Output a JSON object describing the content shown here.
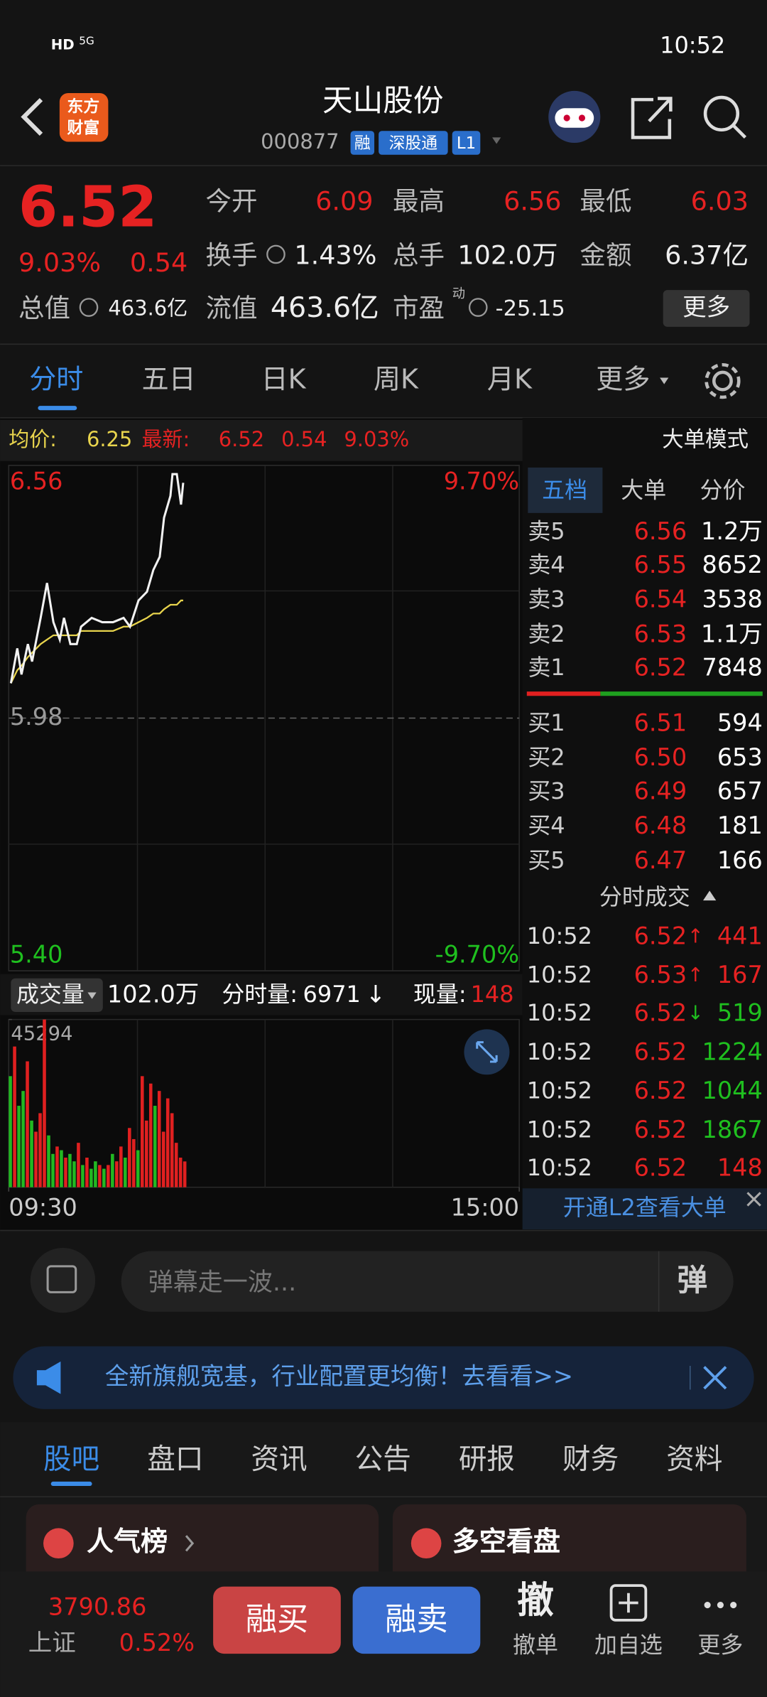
{
  "status": {
    "hd": "HD",
    "network": "5G",
    "time": "10:52"
  },
  "header": {
    "logo": [
      "东方",
      "财富"
    ],
    "name": "天山股份",
    "code": "000877",
    "badges": [
      "融",
      "深股通",
      "L1"
    ]
  },
  "quote": {
    "price": "6.52",
    "change_pct": "9.03%",
    "change": "0.54",
    "fields": [
      {
        "label": "今开",
        "value": "6.09"
      },
      {
        "label": "最高",
        "value": "6.56"
      },
      {
        "label": "最低",
        "value": "6.03"
      },
      {
        "label": "换手",
        "value": "1.43%"
      },
      {
        "label": "总手",
        "value": "102.0万"
      },
      {
        "label": "金额",
        "value": "6.37亿"
      },
      {
        "label": "总值",
        "value": "463.6亿"
      },
      {
        "label": "流值",
        "value": "463.6亿"
      },
      {
        "label": "市盈",
        "sup": "动",
        "value": "-25.15"
      }
    ],
    "more": "更多"
  },
  "tabs": [
    "分时",
    "五日",
    "日K",
    "周K",
    "月K",
    "更多"
  ],
  "info_bar": {
    "avg": "6.25",
    "latest": "6.52",
    "change": "0.54",
    "pct": "9.03%",
    "mode": "大单模式"
  },
  "chart_data": [
    {
      "type": "line",
      "x": [
        1,
        4,
        6,
        9,
        11,
        15,
        18,
        21,
        24,
        26,
        29,
        32,
        34,
        39,
        44,
        49,
        54,
        57,
        61,
        65,
        68,
        71,
        73,
        76,
        77,
        79,
        81,
        82
      ],
      "series": [
        {
          "name": "均价:",
          "color": "#e8d44d",
          "values": [
            6.06,
            6.09,
            6.1,
            6.12,
            6.13,
            6.15,
            6.16,
            6.17,
            6.17,
            6.17,
            6.17,
            6.17,
            6.18,
            6.18,
            6.18,
            6.18,
            6.19,
            6.19,
            6.2,
            6.21,
            6.22,
            6.22,
            6.23,
            6.24,
            6.24,
            6.24,
            6.25,
            6.25
          ]
        },
        {
          "name": "最新:",
          "color": "#f2f2f2",
          "values": [
            6.06,
            6.14,
            6.08,
            6.15,
            6.11,
            6.21,
            6.29,
            6.2,
            6.16,
            6.21,
            6.15,
            6.15,
            6.19,
            6.21,
            6.2,
            6.2,
            6.21,
            6.19,
            6.25,
            6.27,
            6.32,
            6.35,
            6.44,
            6.49,
            6.54,
            6.54,
            6.47,
            6.52
          ]
        }
      ],
      "xlim": [
        0,
        240
      ],
      "xticks": [
        {
          "value": 0,
          "label": "09:30"
        },
        {
          "value": 240,
          "label": "15:00"
        }
      ],
      "ylim": [
        5.4,
        6.56
      ],
      "yticks": [
        {
          "value": 5.4,
          "label": "5.40"
        },
        {
          "value": 5.98,
          "label": "5.98"
        },
        {
          "value": 6.56,
          "label": "6.56"
        }
      ],
      "ytick_colors": [
        "#1fc01f",
        "#9a9a9a",
        "#e62222"
      ],
      "y2lim": [
        -9.7,
        9.7
      ],
      "y2ticks": [
        {
          "value": -9.7,
          "label": "-9.70%"
        },
        {
          "value": 9.7,
          "label": "9.70%"
        }
      ],
      "y2tick_colors": [
        "#1fc01f",
        "#e62222"
      ],
      "grid": true
    },
    {
      "type": "bar",
      "x": [
        0,
        2,
        4,
        6,
        8,
        10,
        12,
        14,
        16,
        18,
        20,
        22,
        24,
        26,
        28,
        30,
        32,
        34,
        36,
        38,
        40,
        42,
        44,
        46,
        48,
        50,
        52,
        54,
        56,
        58,
        60,
        62,
        64,
        66,
        68,
        70,
        72,
        74,
        76,
        78,
        80,
        82
      ],
      "values": [
        30000,
        38000,
        22000,
        26000,
        34000,
        18000,
        15000,
        20000,
        45294,
        14000,
        9000,
        11000,
        10000,
        8000,
        9000,
        7000,
        12000,
        6000,
        8000,
        5000,
        7000,
        6000,
        5000,
        6000,
        9000,
        7000,
        11000,
        8000,
        16000,
        13000,
        10000,
        30000,
        18000,
        28000,
        22000,
        26000,
        15000,
        24000,
        20000,
        12000,
        8000,
        6971
      ],
      "colors": [
        "#22b822",
        "#e02020",
        "#22b822",
        "#22b822",
        "#e02020",
        "#22b822",
        "#e02020",
        "#e02020",
        "#e02020",
        "#22b822",
        "#22b822",
        "#e02020",
        "#22b822",
        "#e02020",
        "#22b822",
        "#22b822",
        "#e02020",
        "#22b822",
        "#e02020",
        "#22b822",
        "#22b822",
        "#e02020",
        "#22b822",
        "#e02020",
        "#22b822",
        "#e02020",
        "#e02020",
        "#22b822",
        "#e02020",
        "#e02020",
        "#22b822",
        "#e02020",
        "#e02020",
        "#e02020",
        "#22b822",
        "#e02020",
        "#e02020",
        "#e02020",
        "#e02020",
        "#e02020",
        "#e02020",
        "#e02020"
      ],
      "xlim": [
        0,
        240
      ],
      "ylim": [
        0,
        45294
      ],
      "yticks": [
        45294
      ]
    }
  ],
  "volume_header": {
    "select": "成交量",
    "total": "102.0万",
    "minute_label": "分时量:",
    "minute": "6971",
    "minute_dir": "↓",
    "current_label": "现量:",
    "current": "148"
  },
  "order_book": {
    "tabs": [
      "五档",
      "大单",
      "分价"
    ],
    "asks": [
      {
        "label": "卖5",
        "price": "6.56",
        "volume": "1.2万"
      },
      {
        "label": "卖4",
        "price": "6.55",
        "volume": "8652"
      },
      {
        "label": "卖3",
        "price": "6.54",
        "volume": "3538"
      },
      {
        "label": "卖2",
        "price": "6.53",
        "volume": "1.1万"
      },
      {
        "label": "卖1",
        "price": "6.52",
        "volume": "7848"
      }
    ],
    "bids": [
      {
        "label": "买1",
        "price": "6.51",
        "volume": "594"
      },
      {
        "label": "买2",
        "price": "6.50",
        "volume": "653"
      },
      {
        "label": "买3",
        "price": "6.49",
        "volume": "657"
      },
      {
        "label": "买4",
        "price": "6.48",
        "volume": "181"
      },
      {
        "label": "买5",
        "price": "6.47",
        "volume": "166"
      }
    ]
  },
  "trades": {
    "title": "分时成交",
    "rows": [
      {
        "time": "10:52",
        "price": "6.52",
        "arrow": "↑",
        "arrow_color": "#e62222",
        "volume": "441",
        "volume_color": "#e62222"
      },
      {
        "time": "10:52",
        "price": "6.53",
        "arrow": "↑",
        "arrow_color": "#e62222",
        "volume": "167",
        "volume_color": "#e62222"
      },
      {
        "time": "10:52",
        "price": "6.52",
        "arrow": "↓",
        "arrow_color": "#1fc01f",
        "volume": "519",
        "volume_color": "#1fc01f"
      },
      {
        "time": "10:52",
        "price": "6.52",
        "arrow": null,
        "arrow_color": null,
        "volume": "1224",
        "volume_color": "#1fc01f"
      },
      {
        "time": "10:52",
        "price": "6.52",
        "arrow": null,
        "arrow_color": null,
        "volume": "1044",
        "volume_color": "#1fc01f"
      },
      {
        "time": "10:52",
        "price": "6.52",
        "arrow": null,
        "arrow_color": null,
        "volume": "1867",
        "volume_color": "#1fc01f"
      },
      {
        "time": "10:52",
        "price": "6.52",
        "arrow": null,
        "arrow_color": null,
        "volume": "148",
        "volume_color": "#e62222"
      }
    ]
  },
  "l2_link": "开通L2查看大单",
  "danmu": {
    "placeholder": "弹幕走一波...",
    "button": "弹"
  },
  "banner": "全新旗舰宽基，行业配置更均衡！去看看>>",
  "bottom_tabs": [
    "股吧",
    "盘口",
    "资讯",
    "公告",
    "研报",
    "财务",
    "资料"
  ],
  "cards": [
    "人气榜",
    "多空看盘"
  ],
  "footer": {
    "index_value": "3790.86",
    "index_name": "上证",
    "index_pct": "0.52%",
    "buy": "融买",
    "sell": "融卖",
    "actions": [
      {
        "icon": "撤",
        "label": "撤单"
      },
      {
        "label": "加自选"
      },
      {
        "label": "更多"
      }
    ]
  }
}
